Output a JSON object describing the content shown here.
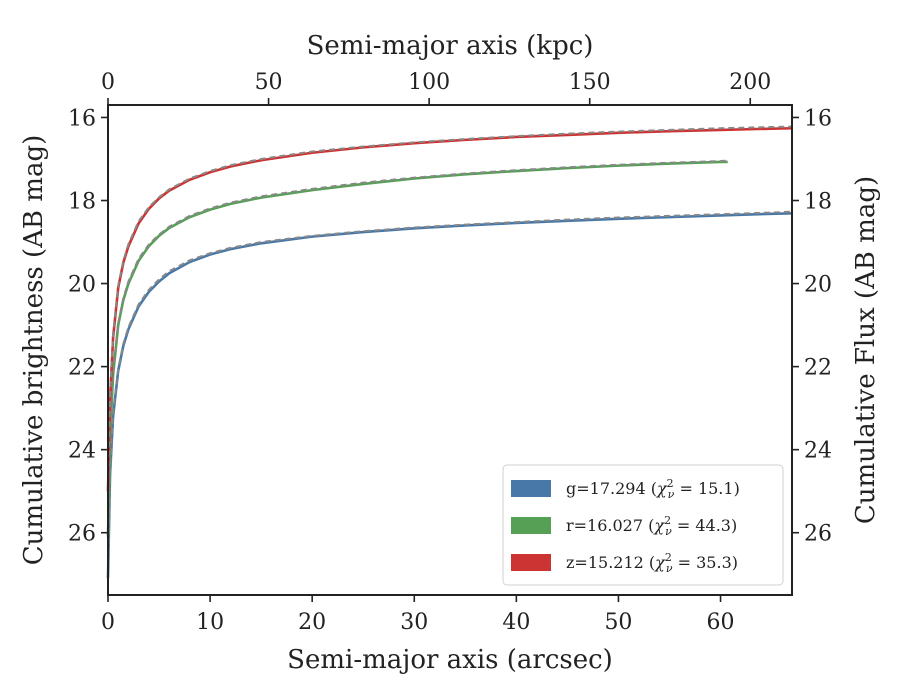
{
  "chart_data": {
    "type": "line",
    "xlabel": "Semi-major axis (arcsec)",
    "x2label": "Semi-major axis (kpc)",
    "ylabel": "Cumulative brightness (AB mag)",
    "y2label": "Cumulative Flux (AB mag)",
    "xlim": [
      0,
      67
    ],
    "x2lim": [
      0,
      213
    ],
    "ylim": [
      27.5,
      15.7
    ],
    "y_inverted": true,
    "xticks": [
      0,
      10,
      20,
      30,
      40,
      50,
      60
    ],
    "x2ticks": [
      0,
      50,
      100,
      150,
      200
    ],
    "yticks": [
      16,
      18,
      20,
      22,
      24,
      26
    ],
    "legend_position": "lower-right",
    "grid": false,
    "series": [
      {
        "name": "g=17.294 (χ²_ν = 15.1)",
        "label_base": "g=17.294",
        "chi2": "15.1",
        "color": "#4878a8",
        "x": [
          0,
          0.2,
          0.5,
          1,
          1.5,
          2,
          3,
          4,
          5,
          6,
          8,
          10,
          12,
          15,
          20,
          25,
          30,
          35,
          40,
          45,
          50,
          55,
          60,
          65,
          67
        ],
        "y": [
          27.1,
          24.6,
          23.2,
          22.1,
          21.5,
          21.1,
          20.55,
          20.2,
          19.95,
          19.75,
          19.48,
          19.3,
          19.17,
          19.03,
          18.87,
          18.76,
          18.67,
          18.6,
          18.54,
          18.49,
          18.44,
          18.4,
          18.36,
          18.32,
          18.31
        ],
        "model_y": [
          27.0,
          24.5,
          23.1,
          22.05,
          21.45,
          21.05,
          20.5,
          20.15,
          19.9,
          19.7,
          19.44,
          19.27,
          19.14,
          19.0,
          18.85,
          18.74,
          18.65,
          18.58,
          18.52,
          18.46,
          18.41,
          18.37,
          18.33,
          18.29,
          18.27
        ]
      },
      {
        "name": "r=16.027 (χ²_ν = 44.3)",
        "label_base": "r=16.027",
        "chi2": "44.3",
        "color": "#55a055",
        "x": [
          0,
          0.2,
          0.5,
          1,
          1.5,
          2,
          3,
          4,
          5,
          6,
          8,
          10,
          12,
          15,
          20,
          25,
          30,
          35,
          40,
          45,
          50,
          55,
          60,
          60.7
        ],
        "y": [
          26.1,
          23.7,
          22.2,
          21.0,
          20.4,
          20.0,
          19.45,
          19.1,
          18.85,
          18.66,
          18.4,
          18.22,
          18.08,
          17.93,
          17.75,
          17.6,
          17.47,
          17.37,
          17.29,
          17.22,
          17.16,
          17.11,
          17.07,
          17.07
        ],
        "model_y": [
          26.0,
          23.6,
          22.1,
          20.95,
          20.35,
          19.95,
          19.4,
          19.06,
          18.82,
          18.63,
          18.37,
          18.19,
          18.05,
          17.9,
          17.72,
          17.57,
          17.45,
          17.35,
          17.27,
          17.2,
          17.14,
          17.09,
          17.05,
          17.04
        ]
      },
      {
        "name": "z=15.212 (χ²_ν = 35.3)",
        "label_base": "z=15.212",
        "chi2": "35.3",
        "color": "#cc3333",
        "x": [
          0,
          0.2,
          0.5,
          1,
          1.5,
          2,
          3,
          4,
          5,
          6,
          8,
          10,
          12,
          15,
          20,
          25,
          30,
          35,
          40,
          45,
          50,
          55,
          60,
          65,
          67
        ],
        "y": [
          25.0,
          22.8,
          21.3,
          20.1,
          19.5,
          19.1,
          18.55,
          18.2,
          17.95,
          17.76,
          17.5,
          17.32,
          17.18,
          17.03,
          16.85,
          16.72,
          16.62,
          16.54,
          16.47,
          16.42,
          16.37,
          16.33,
          16.3,
          16.27,
          16.26
        ],
        "model_y": [
          24.9,
          22.7,
          21.2,
          20.05,
          19.45,
          19.05,
          18.5,
          18.16,
          17.92,
          17.73,
          17.47,
          17.29,
          17.15,
          17.0,
          16.82,
          16.7,
          16.6,
          16.52,
          16.45,
          16.39,
          16.34,
          16.3,
          16.26,
          16.23,
          16.22
        ]
      }
    ],
    "model_line_color": "#888888"
  }
}
